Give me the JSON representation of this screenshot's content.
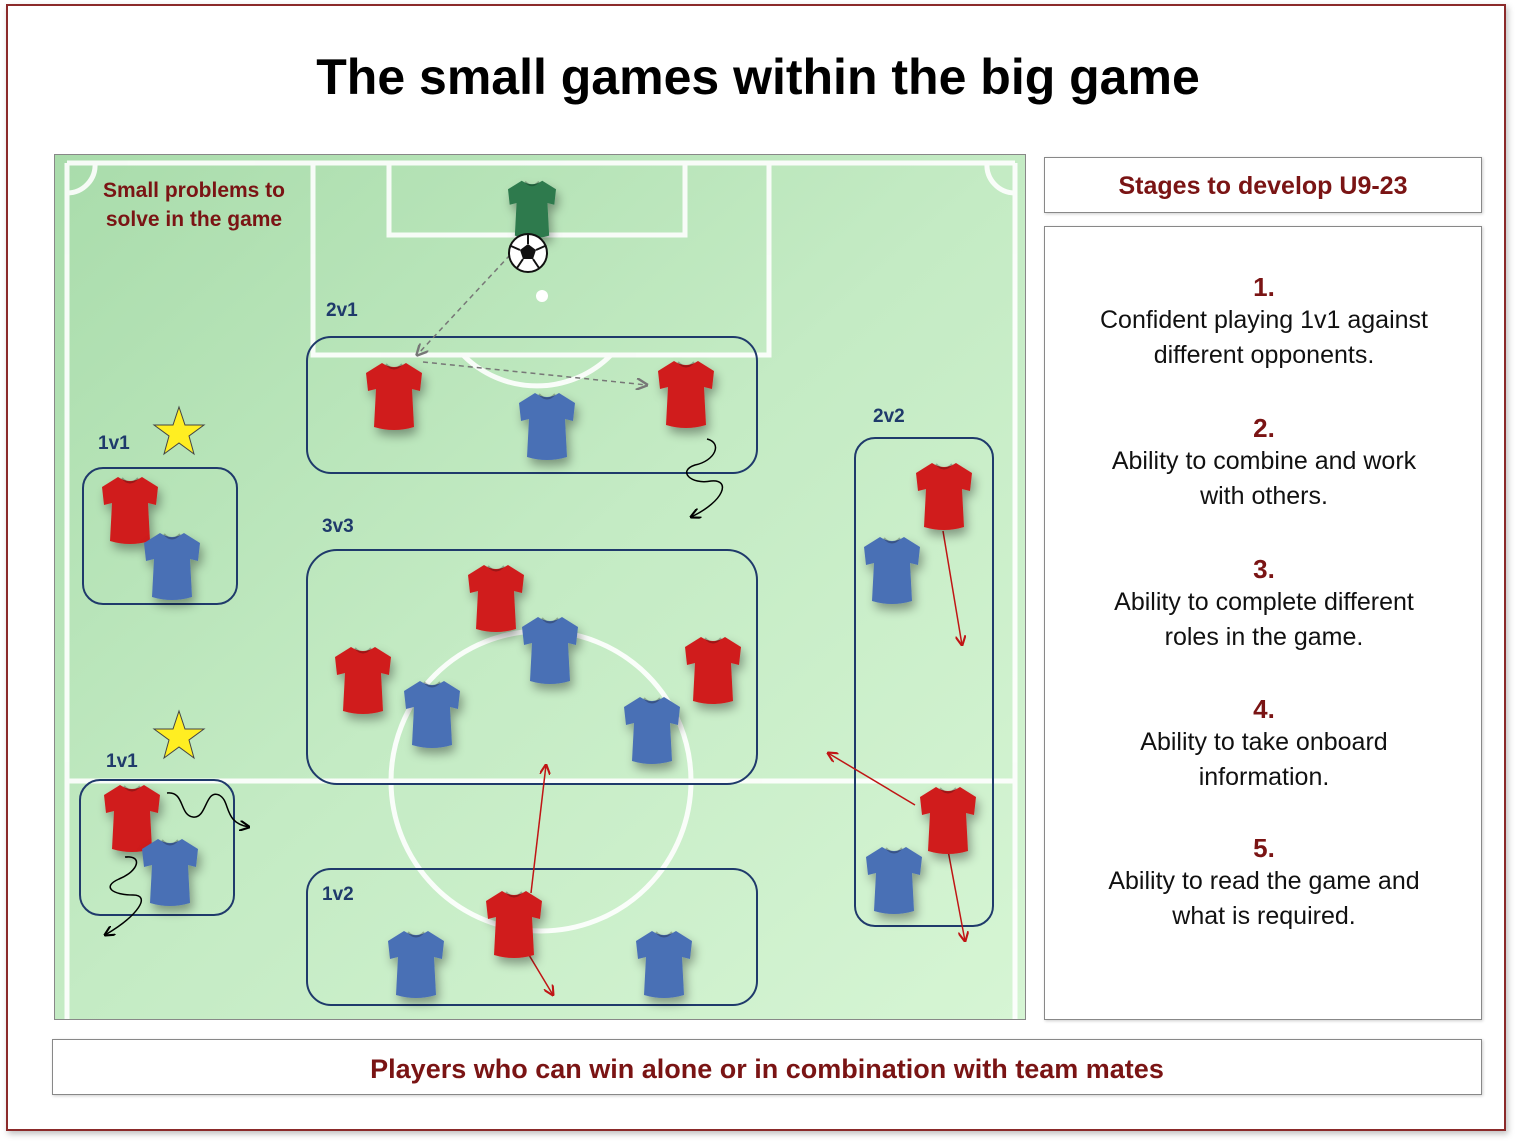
{
  "title": "The small games within the big game",
  "pitch": {
    "caption_line1": "Small problems to",
    "caption_line2": "solve in the game",
    "groups": [
      {
        "label": "2v1"
      },
      {
        "label": "1v1"
      },
      {
        "label": "3v3"
      },
      {
        "label": "2v2"
      },
      {
        "label": "1v1"
      },
      {
        "label": "1v2"
      }
    ]
  },
  "stages": {
    "header": "Stages to develop U9-23",
    "items": [
      {
        "num": "1.",
        "line1": "Confident playing 1v1 against",
        "line2": "different opponents."
      },
      {
        "num": "2.",
        "line1": "Ability to combine and work",
        "line2": "with others."
      },
      {
        "num": "3.",
        "line1": "Ability to complete different",
        "line2": "roles in the game."
      },
      {
        "num": "4.",
        "line1": "Ability to take onboard",
        "line2": "information."
      },
      {
        "num": "5.",
        "line1": "Ability to read the game and",
        "line2": "what is required."
      }
    ]
  },
  "footer": "Players who can win alone or in combination with team mates",
  "colors": {
    "accent": "#7a1414",
    "group_border": "#1f3a6b",
    "red_shirt": "#d01f1f",
    "blue_shirt": "#4a6fb5",
    "keeper_shirt": "#2d7a4e",
    "pitch": "#c8efc8"
  },
  "icons": [
    "star-icon",
    "football-icon",
    "shirt-icon"
  ]
}
